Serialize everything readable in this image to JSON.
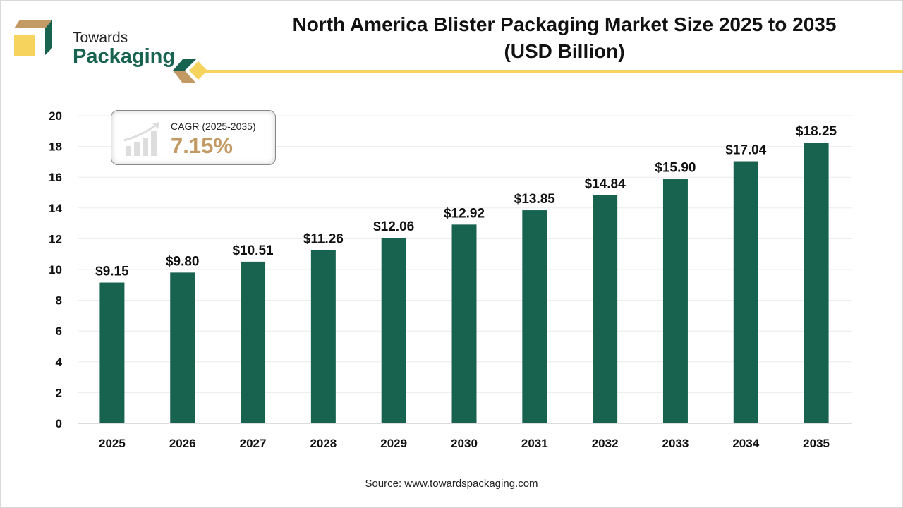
{
  "brand": {
    "line1": "Towards",
    "line2": "Packaging"
  },
  "title_line1": "North America Blister Packaging Market Size 2025 to 2035",
  "title_line2": "(USD Billion)",
  "cagr": {
    "label": "CAGR (2025-2035)",
    "value": "7.15%"
  },
  "source": "Source: www.towardspackaging.com",
  "colors": {
    "bar": "#17634f",
    "accent": "#f5d35c",
    "cagr": "#c39a63"
  },
  "chart_data": {
    "type": "bar",
    "title": "North America Blister Packaging Market Size 2025 to 2035 (USD Billion)",
    "categories": [
      "2025",
      "2026",
      "2027",
      "2028",
      "2029",
      "2030",
      "2031",
      "2032",
      "2033",
      "2034",
      "2035"
    ],
    "values": [
      9.15,
      9.8,
      10.51,
      11.26,
      12.06,
      12.92,
      13.85,
      14.84,
      15.9,
      17.04,
      18.25
    ],
    "data_labels": [
      "$9.15",
      "$9.80",
      "$10.51",
      "$11.26",
      "$12.06",
      "$12.92",
      "$13.85",
      "$14.84",
      "$15.90",
      "$17.04",
      "$18.25"
    ],
    "yticks": [
      0,
      2,
      4,
      6,
      8,
      10,
      12,
      14,
      16,
      18,
      20
    ],
    "ylim": [
      0,
      20
    ],
    "grid": true,
    "xlabel": "",
    "ylabel": ""
  }
}
